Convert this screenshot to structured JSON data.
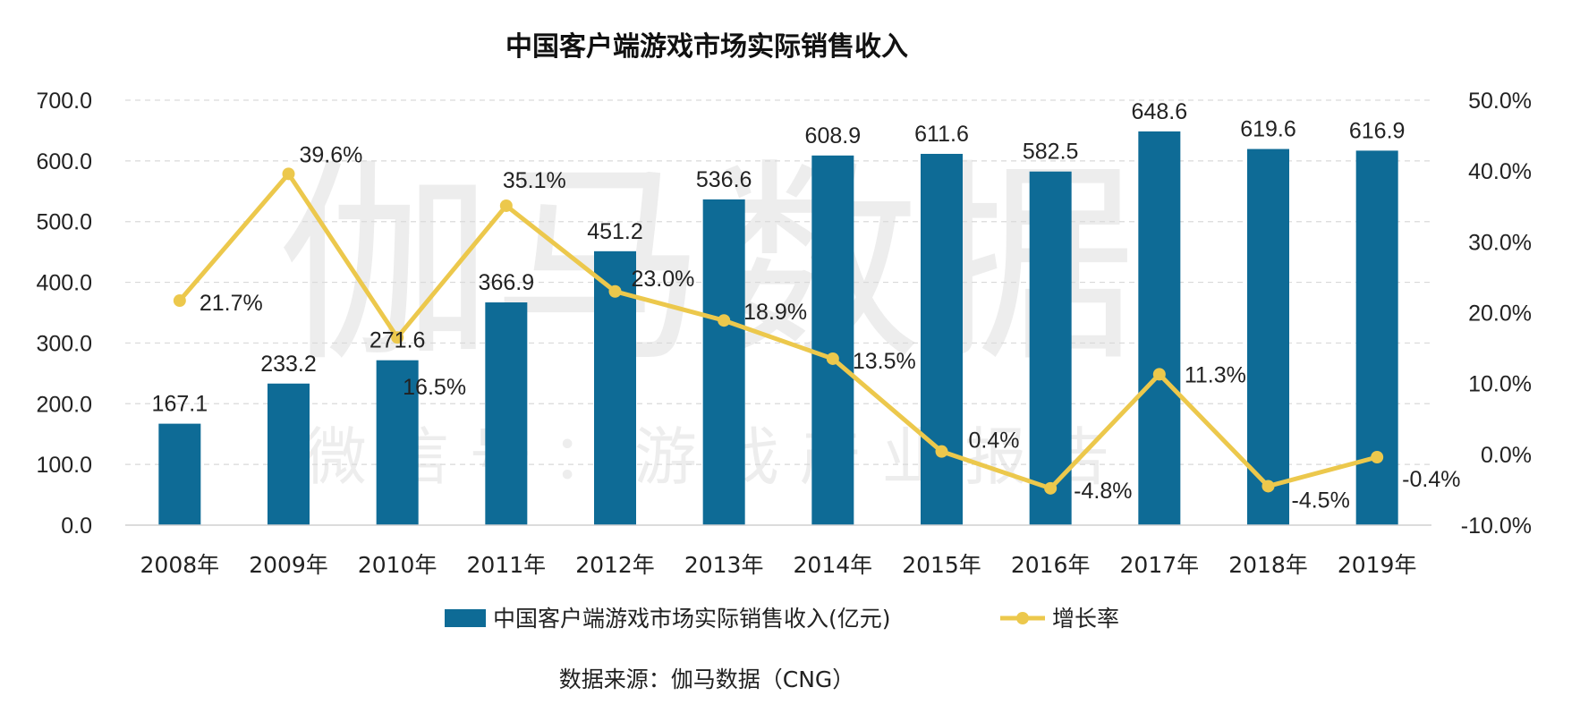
{
  "watermark": {
    "main": "伽马数据",
    "sub": "微 信 号 ： 游 戏 产 业 报 告"
  },
  "source": "数据来源：伽马数据（CNG）",
  "colors": {
    "bar": "#0e6b96",
    "line": "#ecc84c",
    "grid": "#d9d9d9",
    "axis": "#d0d0d0"
  },
  "chart_data": {
    "type": "bar",
    "title": "中国客户端游戏市场实际销售收入",
    "categories": [
      "2008年",
      "2009年",
      "2010年",
      "2011年",
      "2012年",
      "2013年",
      "2014年",
      "2015年",
      "2016年",
      "2017年",
      "2018年",
      "2019年"
    ],
    "series": [
      {
        "name": "中国客户端游戏市场实际销售收入(亿元)",
        "type": "bar",
        "axis": "left",
        "values": [
          167.1,
          233.2,
          271.6,
          366.9,
          451.2,
          536.6,
          608.9,
          611.6,
          582.5,
          648.6,
          619.6,
          616.9
        ],
        "labels": [
          "167.1",
          "233.2",
          "271.6",
          "366.9",
          "451.2",
          "536.6",
          "608.9",
          "611.6",
          "582.5",
          "648.6",
          "619.6",
          "616.9"
        ]
      },
      {
        "name": "增长率",
        "type": "line",
        "axis": "right",
        "values": [
          21.7,
          39.6,
          16.5,
          35.1,
          23.0,
          18.9,
          13.5,
          0.4,
          -4.8,
          11.3,
          -4.5,
          -0.4
        ],
        "labels": [
          "21.7%",
          "39.6%",
          "16.5%",
          "35.1%",
          "23.0%",
          "18.9%",
          "13.5%",
          "0.4%",
          "-4.8%",
          "11.3%",
          "-4.5%",
          "-0.4%"
        ]
      }
    ],
    "y_left": {
      "min": 0,
      "max": 700,
      "step": 100,
      "ticks": [
        "0.0",
        "100.0",
        "200.0",
        "300.0",
        "400.0",
        "500.0",
        "600.0",
        "700.0"
      ]
    },
    "y_right": {
      "min": -10,
      "max": 50,
      "step": 10,
      "ticks": [
        "-10.0%",
        "0.0%",
        "10.0%",
        "20.0%",
        "30.0%",
        "40.0%",
        "50.0%"
      ]
    },
    "grid": true,
    "legend_position": "bottom"
  }
}
